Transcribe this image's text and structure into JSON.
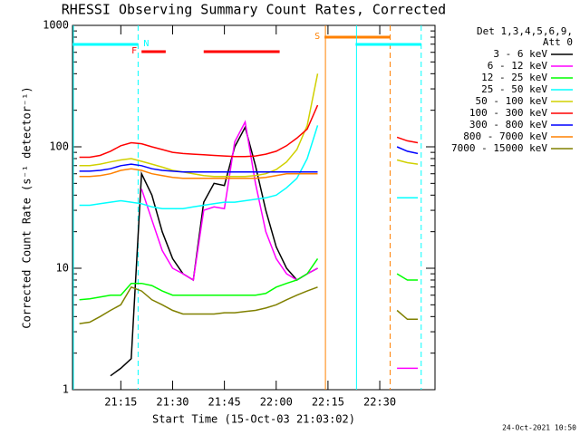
{
  "chart_data": {
    "type": "line",
    "title": "RHESSI Observing Summary Count Rates, Corrected",
    "x_label": "Start Time (15-Oct-03 21:03:02)",
    "y_label": "Corrected Count Rate (s⁻¹ detector⁻¹)",
    "legend_title": [
      "Det 1,3,4,5,6,9,",
      "Att 0"
    ],
    "footer": "24-Oct-2021 10:50",
    "log_y": true,
    "xlim": [
      "21:01",
      "22:46"
    ],
    "xticks": [
      "21:15",
      "21:30",
      "21:45",
      "22:00",
      "22:15",
      "22:30"
    ],
    "ylim": [
      1,
      1000
    ],
    "yticks": [
      1,
      10,
      100,
      1000
    ],
    "x": [
      "21:03",
      "21:06",
      "21:09",
      "21:12",
      "21:15",
      "21:18",
      "21:21",
      "21:24",
      "21:27",
      "21:30",
      "21:33",
      "21:36",
      "21:39",
      "21:42",
      "21:45",
      "21:48",
      "21:51",
      "21:54",
      "21:57",
      "22:00",
      "22:03",
      "22:06",
      "22:09",
      "22:12",
      "22:20",
      "22:35",
      "22:38",
      "22:41"
    ],
    "series": [
      {
        "name": "3 - 6 keV",
        "color": "#000000",
        "values": [
          null,
          null,
          null,
          1.3,
          1.5,
          1.8,
          60,
          40,
          20,
          12,
          9,
          8,
          35,
          50,
          48,
          100,
          145,
          70,
          30,
          15,
          10,
          8,
          9,
          10,
          null,
          null,
          null,
          null
        ]
      },
      {
        "name": "6 - 12 keV",
        "color": "#ff00ff",
        "values": [
          null,
          null,
          null,
          null,
          null,
          null,
          45,
          25,
          14,
          10,
          9,
          8,
          30,
          32,
          31,
          110,
          160,
          50,
          20,
          12,
          9,
          8,
          9,
          10,
          null,
          1.5,
          1.5,
          1.5
        ]
      },
      {
        "name": "12 - 25 keV",
        "color": "#00ff00",
        "values": [
          5.5,
          5.6,
          5.8,
          6,
          6,
          7.5,
          7.5,
          7.2,
          6.5,
          6,
          6,
          6,
          6,
          6,
          6,
          6,
          6,
          6,
          6.2,
          7,
          7.5,
          8,
          9,
          12,
          null,
          9,
          8,
          8
        ]
      },
      {
        "name": "25 - 50 keV",
        "color": "#00ffff",
        "values": [
          33,
          33,
          34,
          35,
          36,
          35,
          34,
          32,
          31,
          31,
          31,
          32,
          33,
          34,
          35,
          35,
          36,
          37,
          38,
          40,
          46,
          55,
          80,
          150,
          null,
          38,
          38,
          38
        ]
      },
      {
        "name": "50 - 100 keV",
        "color": "#d0d000",
        "values": [
          70,
          70,
          72,
          75,
          78,
          80,
          76,
          72,
          68,
          64,
          62,
          60,
          58,
          57,
          57,
          57,
          57,
          58,
          60,
          65,
          75,
          95,
          150,
          400,
          null,
          78,
          74,
          72
        ]
      },
      {
        "name": "100 - 300 keV",
        "color": "#ff0000",
        "values": [
          82,
          82,
          85,
          92,
          102,
          108,
          106,
          100,
          95,
          90,
          88,
          87,
          86,
          85,
          84,
          83,
          83,
          84,
          87,
          92,
          102,
          118,
          140,
          220,
          null,
          120,
          112,
          108
        ]
      },
      {
        "name": "300 - 800 keV",
        "color": "#0000ff",
        "values": [
          63,
          63,
          64,
          66,
          70,
          72,
          70,
          66,
          64,
          63,
          62,
          62,
          62,
          62,
          62,
          62,
          62,
          62,
          62,
          62,
          62,
          62,
          62,
          62,
          null,
          100,
          92,
          88
        ]
      },
      {
        "name": "800 - 7000 keV",
        "color": "#ff8000",
        "values": [
          57,
          57,
          58,
          60,
          64,
          66,
          64,
          60,
          58,
          56,
          55,
          55,
          55,
          55,
          55,
          55,
          55,
          55,
          56,
          58,
          60,
          60,
          60,
          60,
          null,
          null,
          null,
          null
        ]
      },
      {
        "name": "7000 - 15000 keV",
        "color": "#808000",
        "values": [
          3.5,
          3.6,
          4,
          4.5,
          5,
          7,
          6.5,
          5.5,
          5,
          4.5,
          4.2,
          4.2,
          4.2,
          4.2,
          4.3,
          4.3,
          4.4,
          4.5,
          4.7,
          5,
          5.5,
          6,
          6.5,
          7,
          null,
          4.5,
          3.8,
          3.8
        ]
      }
    ],
    "intervals": [
      {
        "label": "S",
        "color": "#ff8000",
        "spans": [
          [
            "22:14",
            "22:33"
          ]
        ]
      },
      {
        "label": "N",
        "color": "#00ffff",
        "spans": [
          [
            "21:01",
            "21:20"
          ],
          [
            "22:23",
            "22:42"
          ]
        ]
      },
      {
        "label": "F",
        "color": "#ff0000",
        "spans": [
          [
            "21:21",
            "21:28"
          ],
          [
            "21:39",
            "22:01"
          ]
        ]
      }
    ]
  }
}
